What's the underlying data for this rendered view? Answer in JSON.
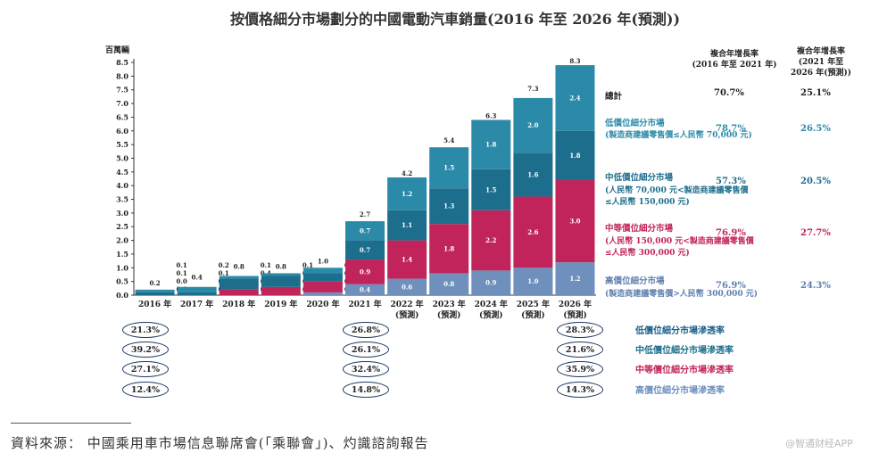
{
  "chart_data": {
    "type": "bar",
    "stacked": true,
    "title": "按價格細分市場劃分的中國電動汽車銷量(2016 年至 2026 年(預測))",
    "ylabel": "百萬輛",
    "ylim": [
      0,
      8.5
    ],
    "yticks": [
      "0.0",
      "0.5",
      "1.0",
      "1.5",
      "2.0",
      "2.5",
      "3.0",
      "3.5",
      "4.0",
      "4.5",
      "5.0",
      "5.5",
      "6.0",
      "6.5",
      "7.0",
      "7.5",
      "8.0",
      "8.5"
    ],
    "categories": [
      "2016 年",
      "2017 年",
      "2018 年",
      "2019 年",
      "2020 年",
      "2021 年",
      "2022 年",
      "2023 年",
      "2024 年",
      "2025 年",
      "2026 年"
    ],
    "category_sublabels": [
      "",
      "",
      "",
      "",
      "",
      "",
      "(預測)",
      "(預測)",
      "(預測)",
      "(預測)",
      "(預測)"
    ],
    "totals": [
      0.2,
      0.4,
      0.8,
      0.8,
      1.0,
      2.7,
      4.2,
      5.4,
      6.3,
      7.3,
      8.3
    ],
    "series": [
      {
        "name": "高價位細分市場",
        "color": "#6f8fbc",
        "values": [
          0.0,
          0.0,
          0.0,
          0.0,
          0.1,
          0.4,
          0.6,
          0.8,
          0.9,
          1.0,
          1.2
        ]
      },
      {
        "name": "中等價位細分市場",
        "color": "#c0245a",
        "values": [
          0.0,
          0.0,
          0.2,
          0.3,
          0.4,
          0.9,
          1.4,
          1.8,
          2.2,
          2.6,
          3.0
        ]
      },
      {
        "name": "中低價位細分市場",
        "color": "#1d6e8c",
        "values": [
          0.1,
          0.1,
          0.4,
          0.4,
          0.3,
          0.7,
          1.1,
          1.3,
          1.5,
          1.6,
          1.8
        ]
      },
      {
        "name": "低價位細分市場",
        "color": "#2b8aa8",
        "values": [
          0.1,
          0.2,
          0.1,
          0.1,
          0.2,
          0.7,
          1.2,
          1.5,
          1.8,
          2.0,
          2.4
        ]
      }
    ]
  },
  "header": {
    "unit": "百萬輛",
    "cagr1_l1": "複合年增長率",
    "cagr1_l2": "(2016 年至 2021 年)",
    "cagr2_l1": "複合年增長率",
    "cagr2_l2": "(2021 年至",
    "cagr2_l3": "2026 年(預測))"
  },
  "legend": {
    "total_label": "總計",
    "total_cagr1": "70.7%",
    "total_cagr2": "25.1%",
    "items": [
      {
        "name": "低價位細分市場",
        "sub1": "(製造商建議零售價≤人民幣 70,000 元)",
        "sub2": "",
        "cagr1": "78.7%",
        "cagr2": "26.5%",
        "color": "#2b8aa8"
      },
      {
        "name": "中低價位細分市場",
        "sub1": "(人民幣 70,000 元<製造商建議零售價",
        "sub2": "≤人民幣 150,000 元)",
        "cagr1": "57.3%",
        "cagr2": "20.5%",
        "color": "#1d6e8c"
      },
      {
        "name": "中等價位細分市場",
        "sub1": "(人民幣 150,000 元<製造商建議零售價",
        "sub2": "≤人民幣 300,000 元)",
        "cagr1": "76.9%",
        "cagr2": "27.7%",
        "color": "#c0245a"
      },
      {
        "name": "高價位細分市場",
        "sub1": "(製造商建議零售價>人民幣 300,000 元)",
        "sub2": "",
        "cagr1": "76.9%",
        "cagr2": "24.3%",
        "color": "#6f8fbc"
      }
    ]
  },
  "penetration": {
    "labels": [
      "低價位細分市場滲透率",
      "中低價位細分市場滲透率",
      "中等價位細分市場滲透率",
      "高價位細分市場滲透率"
    ],
    "colors": [
      "#1d5f8a",
      "#1d6e8c",
      "#c0245a",
      "#6f8fbc"
    ],
    "col2016": [
      "21.3%",
      "39.2%",
      "27.1%",
      "12.4%"
    ],
    "col2021": [
      "26.8%",
      "26.1%",
      "32.4%",
      "14.8%"
    ],
    "col2026": [
      "28.3%",
      "21.6%",
      "35.9%",
      "14.3%"
    ]
  },
  "source": "資料來源： 中國乘用車市場信息聯席會(「乘聯會」)、灼識諮詢報告",
  "watermark": "@智通财经APP"
}
